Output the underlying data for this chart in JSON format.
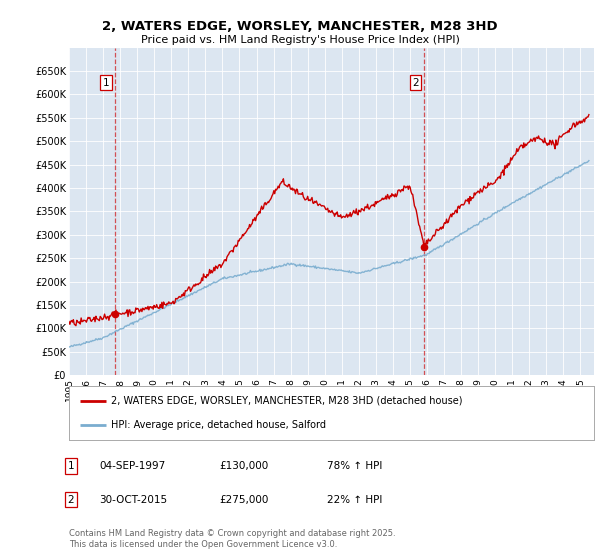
{
  "title_line1": "2, WATERS EDGE, WORSLEY, MANCHESTER, M28 3HD",
  "title_line2": "Price paid vs. HM Land Registry's House Price Index (HPI)",
  "ylabel_ticks": [
    "£0",
    "£50K",
    "£100K",
    "£150K",
    "£200K",
    "£250K",
    "£300K",
    "£350K",
    "£400K",
    "£450K",
    "£500K",
    "£550K",
    "£600K",
    "£650K"
  ],
  "ylim": [
    0,
    700000
  ],
  "yticks": [
    0,
    50000,
    100000,
    150000,
    200000,
    250000,
    300000,
    350000,
    400000,
    450000,
    500000,
    550000,
    600000,
    650000
  ],
  "xlim_start": 1995.0,
  "xlim_end": 2025.8,
  "sale1_date": 1997.67,
  "sale1_price": 130000,
  "sale2_date": 2015.83,
  "sale2_price": 275000,
  "red_line_color": "#cc0000",
  "blue_line_color": "#7aadcf",
  "plot_bg_color": "#dce6f1",
  "legend_label_red": "2, WATERS EDGE, WORSLEY, MANCHESTER, M28 3HD (detached house)",
  "legend_label_blue": "HPI: Average price, detached house, Salford",
  "footer": "Contains HM Land Registry data © Crown copyright and database right 2025.\nThis data is licensed under the Open Government Licence v3.0.",
  "xticks": [
    1995,
    1996,
    1997,
    1998,
    1999,
    2000,
    2001,
    2002,
    2003,
    2004,
    2005,
    2006,
    2007,
    2008,
    2009,
    2010,
    2011,
    2012,
    2013,
    2014,
    2015,
    2016,
    2017,
    2018,
    2019,
    2020,
    2021,
    2022,
    2023,
    2024,
    2025
  ]
}
